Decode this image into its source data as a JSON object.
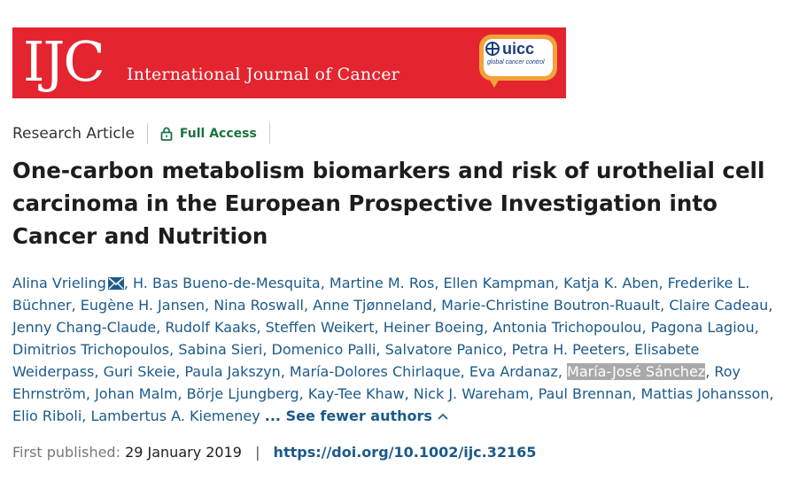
{
  "banner": {
    "logo": "IJC",
    "journal_name": "International Journal of Cancer",
    "uicc_word": "uicc",
    "uicc_tagline": "global cancer control",
    "brand_color": "#e4242f",
    "uicc_color": "#f2a23a"
  },
  "meta": {
    "article_type": "Research Article",
    "access_label": "Full Access",
    "access_icon": "lock-icon",
    "access_color": "#1a7340"
  },
  "title": "One-carbon metabolism biomarkers and risk of urothelial cell carcinoma in the European Prospective Investigation into Cancer and Nutrition",
  "authors": [
    "Alina Vrieling",
    "H. Bas Bueno-de-Mesquita",
    "Martine M. Ros",
    "Ellen Kampman",
    "Katja K. Aben",
    "Frederike L. Büchner",
    "Eugène H. Jansen",
    "Nina Roswall",
    "Anne Tjønneland",
    "Marie-Christine Boutron-Ruault",
    "Claire Cadeau",
    "Jenny Chang-Claude",
    "Rudolf Kaaks",
    "Steffen Weikert",
    "Heiner Boeing",
    "Antonia Trichopoulou",
    "Pagona Lagiou",
    "Dimitrios Trichopoulos",
    "Sabina Sieri",
    "Domenico Palli",
    "Salvatore Panico",
    "Petra H. Peeters",
    "Elisabete Weiderpass",
    "Guri Skeie",
    "Paula Jakszyn",
    "María-Dolores Chirlaque",
    "Eva Ardanaz",
    "María-José Sánchez",
    "Roy Ehrnström",
    "Johan Malm",
    "Börje Ljungberg",
    "Kay-Tee Khaw",
    "Nick J. Wareham",
    "Paul Brennan",
    "Mattias Johansson",
    "Elio Riboli",
    "Lambertus A. Kiemeney"
  ],
  "authors_toggle": "... See fewer authors",
  "published": {
    "label": "First published:",
    "date": "29 January 2019",
    "separator": "|",
    "doi": "https://doi.org/10.1002/ijc.32165"
  }
}
